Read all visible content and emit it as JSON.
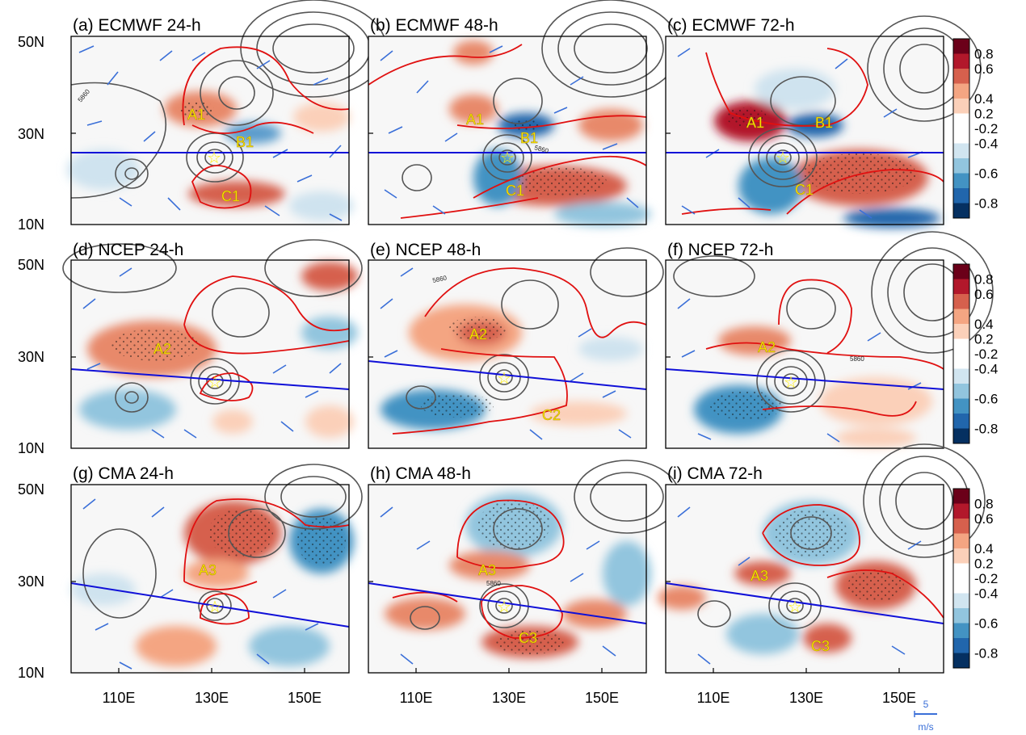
{
  "chart_data": {
    "type": "heatmap",
    "description_variable": "shaded correlation/sensitivity field with 500-hPa geopotential height contours and wind barbs",
    "colorbar": {
      "ticks": [
        "0.8",
        "0.6",
        "0.4",
        "0.2",
        "-0.2",
        "-0.4",
        "-0.6",
        "-0.8"
      ],
      "colors": [
        "#6b0019",
        "#b2182b",
        "#d6604d",
        "#f4a582",
        "#fbd0b9",
        "#ffffff",
        "#ffffff",
        "#d1e5f0",
        "#92c5de",
        "#4393c3",
        "#2166ac",
        "#053061"
      ]
    },
    "reference_vector": {
      "value": "5",
      "unit": "m/s"
    },
    "x_ticks": [
      "110E",
      "130E",
      "150E"
    ],
    "y_ticks": [
      "50N",
      "30N",
      "10N"
    ],
    "panels": [
      {
        "title": "(a) ECMWF 24-h",
        "model": "ECMWF",
        "lead": "24-h",
        "labels": [
          "A1",
          "B1",
          "C1"
        ],
        "contour_label": "5860"
      },
      {
        "title": "(b) ECMWF 48-h",
        "model": "ECMWF",
        "lead": "48-h",
        "labels": [
          "A1",
          "B1",
          "C1"
        ],
        "contour_label": "5860"
      },
      {
        "title": "(c) ECMWF 72-h",
        "model": "ECMWF",
        "lead": "72-h",
        "labels": [
          "A1",
          "B1",
          "C1"
        ],
        "contour_label": ""
      },
      {
        "title": "(d) NCEP 24-h",
        "model": "NCEP",
        "lead": "24-h",
        "labels": [
          "A2"
        ],
        "contour_label": ""
      },
      {
        "title": "(e) NCEP 48-h",
        "model": "NCEP",
        "lead": "48-h",
        "labels": [
          "A2",
          "C2"
        ],
        "contour_label": "5860"
      },
      {
        "title": "(f) NCEP 72-h",
        "model": "NCEP",
        "lead": "72-h",
        "labels": [
          "A2"
        ],
        "contour_label": "5860"
      },
      {
        "title": "(g) CMA 24-h",
        "model": "CMA",
        "lead": "24-h",
        "labels": [
          "A3"
        ],
        "contour_label": ""
      },
      {
        "title": "(h) CMA 48-h",
        "model": "CMA",
        "lead": "48-h",
        "labels": [
          "A3",
          "C3"
        ],
        "contour_label": "5860"
      },
      {
        "title": "(i) CMA 72-h",
        "model": "CMA",
        "lead": "72-h",
        "labels": [
          "A3",
          "C3"
        ],
        "contour_label": ""
      }
    ]
  }
}
